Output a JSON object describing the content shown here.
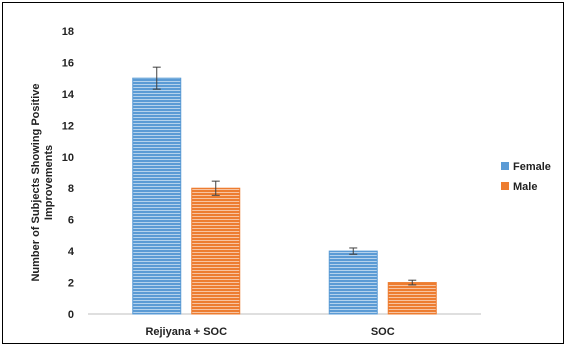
{
  "chart_data": {
    "type": "bar",
    "title": "",
    "xlabel": "",
    "ylabel_lines": [
      "Number of Subjects Showing Positive",
      "Improvements"
    ],
    "categories": [
      "Rejiyana + SOC",
      "SOC"
    ],
    "series": [
      {
        "name": "Female",
        "values": [
          15,
          4
        ],
        "errors": [
          0.7,
          0.2
        ],
        "color": "#5B9BD5"
      },
      {
        "name": "Male",
        "values": [
          8,
          2
        ],
        "errors": [
          0.45,
          0.15
        ],
        "color": "#ED7D31"
      }
    ],
    "ylim": [
      0,
      18
    ],
    "yticks": [
      0,
      2,
      4,
      6,
      8,
      10,
      12,
      14,
      16,
      18
    ],
    "grid": false,
    "legend_position": "right",
    "bar_pattern": "horizontal-lines"
  }
}
